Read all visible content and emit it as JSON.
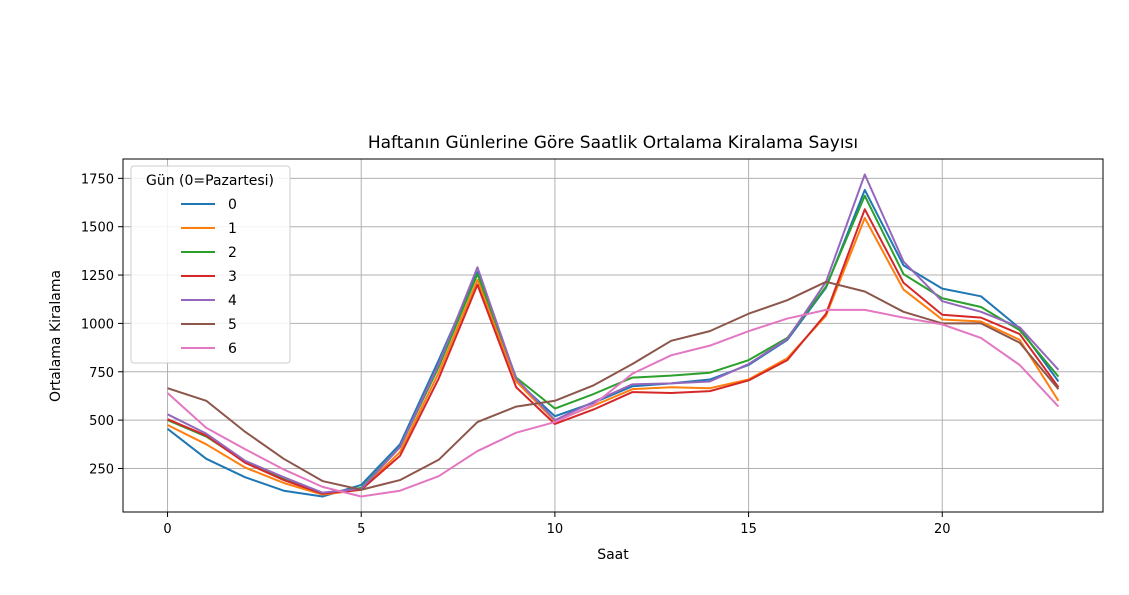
{
  "chart_data": {
    "type": "line",
    "title": "Haftanın Günlerine Göre Saatlik Ortalama Kiralama Sayısı",
    "xlabel": "Saat",
    "ylabel": "Ortalama Kiralama",
    "xlim": [
      -1.15,
      24.15
    ],
    "ylim": [
      25,
      1850
    ],
    "x_ticks": [
      0,
      5,
      10,
      15,
      20
    ],
    "y_ticks": [
      250,
      500,
      750,
      1000,
      1250,
      1500,
      1750
    ],
    "grid": true,
    "legend": {
      "title": "Gün (0=Pazartesi)",
      "position": "top-left"
    },
    "x": [
      0,
      1,
      2,
      3,
      4,
      5,
      6,
      7,
      8,
      9,
      10,
      11,
      12,
      13,
      14,
      15,
      16,
      17,
      18,
      19,
      20,
      21,
      22,
      23
    ],
    "series": [
      {
        "name": "0",
        "color": "#1f77b4",
        "values": [
          455,
          300,
          205,
          135,
          105,
          165,
          375,
          810,
          1265,
          705,
          520,
          590,
          675,
          690,
          710,
          785,
          915,
          1185,
          1690,
          1300,
          1180,
          1140,
          975,
          700
        ]
      },
      {
        "name": "1",
        "color": "#ff7f0e",
        "values": [
          475,
          375,
          255,
          175,
          115,
          140,
          335,
          745,
          1225,
          700,
          495,
          575,
          660,
          670,
          665,
          710,
          820,
          1040,
          1545,
          1175,
          1020,
          1010,
          915,
          600
        ]
      },
      {
        "name": "2",
        "color": "#2ca02c",
        "values": [
          500,
          415,
          285,
          195,
          120,
          150,
          360,
          775,
          1255,
          720,
          560,
          635,
          720,
          730,
          745,
          810,
          925,
          1190,
          1660,
          1255,
          1130,
          1085,
          965,
          725
        ]
      },
      {
        "name": "3",
        "color": "#d62728",
        "values": [
          505,
          420,
          280,
          190,
          120,
          140,
          315,
          715,
          1200,
          670,
          480,
          555,
          645,
          640,
          650,
          705,
          810,
          1050,
          1590,
          1210,
          1045,
          1030,
          945,
          670
        ]
      },
      {
        "name": "4",
        "color": "#9467bd",
        "values": [
          530,
          430,
          290,
          205,
          125,
          145,
          360,
          790,
          1290,
          715,
          500,
          595,
          685,
          690,
          700,
          790,
          920,
          1215,
          1770,
          1320,
          1115,
          1060,
          980,
          760
        ]
      },
      {
        "name": "5",
        "color": "#8c564b",
        "values": [
          665,
          600,
          440,
          300,
          185,
          140,
          190,
          295,
          490,
          570,
          600,
          680,
          790,
          910,
          960,
          1050,
          1120,
          1215,
          1165,
          1060,
          1000,
          1000,
          900,
          660
        ]
      },
      {
        "name": "6",
        "color": "#e377c2",
        "values": [
          640,
          460,
          350,
          245,
          155,
          105,
          135,
          210,
          340,
          435,
          490,
          580,
          740,
          835,
          885,
          960,
          1025,
          1070,
          1070,
          1030,
          995,
          925,
          785,
          570
        ]
      }
    ]
  }
}
